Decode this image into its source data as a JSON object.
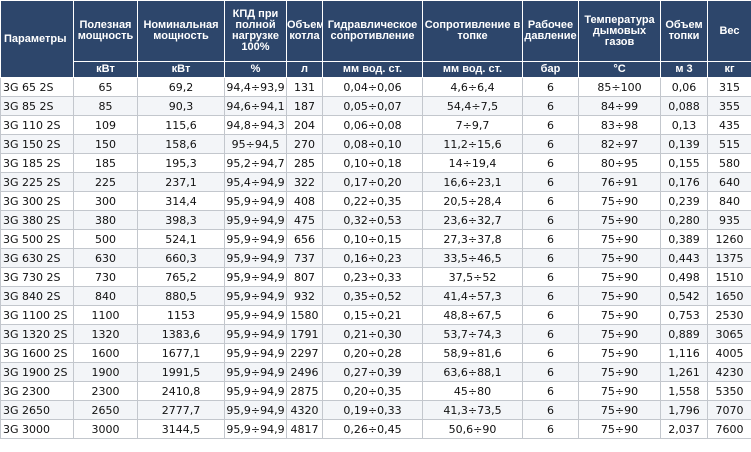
{
  "colors": {
    "header_bg": "#2d466b",
    "header_text": "#ffffff",
    "grid": "#c3c7cd"
  },
  "headers": [
    "Параметры",
    "Полезная мощность",
    "Номинальная мощность",
    "КПД при полной нагрузке 100%",
    "Объем котла",
    "Гидравлическое сопротивление",
    "Сопротивление в топке",
    "Рабочее давление",
    "Температура дымовых газов",
    "Объем топки",
    "Вес"
  ],
  "units": [
    "",
    "кВт",
    "кВт",
    "%",
    "л",
    "мм вод. ст.",
    "мм вод. ст.",
    "бар",
    "°C",
    "м 3",
    "кг"
  ],
  "rows": [
    [
      "3G 65 2S",
      "65",
      "69,2",
      "94,4÷93,9",
      "131",
      "0,04÷0,06",
      "4,6÷6,4",
      "6",
      "85÷100",
      "0,06",
      "315"
    ],
    [
      "3G 85 2S",
      "85",
      "90,3",
      "94,6÷94,1",
      "187",
      "0,05÷0,07",
      "54,4÷7,5",
      "6",
      "84÷99",
      "0,088",
      "355"
    ],
    [
      "3G 110 2S",
      "109",
      "115,6",
      "94,8÷94,3",
      "204",
      "0,06÷0,08",
      "7÷9,7",
      "6",
      "83÷98",
      "0,13",
      "435"
    ],
    [
      "3G 150 2S",
      "150",
      "158,6",
      "95÷94,5",
      "270",
      "0,08÷0,10",
      "11,2÷15,6",
      "6",
      "82÷97",
      "0,139",
      "515"
    ],
    [
      "3G 185 2S",
      "185",
      "195,3",
      "95,2÷94,7",
      "285",
      "0,10÷0,18",
      "14÷19,4",
      "6",
      "80÷95",
      "0,155",
      "580"
    ],
    [
      "3G 225 2S",
      "225",
      "237,1",
      "95,4÷94,9",
      "322",
      "0,17÷0,20",
      "16,6÷23,1",
      "6",
      "76÷91",
      "0,176",
      "640"
    ],
    [
      "3G 300 2S",
      "300",
      "314,4",
      "95,9÷94,9",
      "408",
      "0,22÷0,35",
      "20,5÷28,4",
      "6",
      "75÷90",
      "0,239",
      "840"
    ],
    [
      "3G 380 2S",
      "380",
      "398,3",
      "95,9÷94,9",
      "475",
      "0,32÷0,53",
      "23,6÷32,7",
      "6",
      "75÷90",
      "0,280",
      "935"
    ],
    [
      "3G 500 2S",
      "500",
      "524,1",
      "95,9÷94,9",
      "656",
      "0,10÷0,15",
      "27,3÷37,8",
      "6",
      "75÷90",
      "0,389",
      "1260"
    ],
    [
      "3G 630 2S",
      "630",
      "660,3",
      "95,9÷94,9",
      "737",
      "0,16÷0,23",
      "33,5÷46,5",
      "6",
      "75÷90",
      "0,443",
      "1375"
    ],
    [
      "3G 730 2S",
      "730",
      "765,2",
      "95,9÷94,9",
      "807",
      "0,23÷0,33",
      "37,5÷52",
      "6",
      "75÷90",
      "0,498",
      "1510"
    ],
    [
      "3G 840 2S",
      "840",
      "880,5",
      "95,9÷94,9",
      "932",
      "0,35÷0,52",
      "41,4÷57,3",
      "6",
      "75÷90",
      "0,542",
      "1650"
    ],
    [
      "3G 1100 2S",
      "1100",
      "1153",
      "95,9÷94,9",
      "1580",
      "0,15÷0,21",
      "48,8÷67,5",
      "6",
      "75÷90",
      "0,753",
      "2530"
    ],
    [
      "3G 1320 2S",
      "1320",
      "1383,6",
      "95,9÷94,9",
      "1791",
      "0,21÷0,30",
      "53,7÷74,3",
      "6",
      "75÷90",
      "0,889",
      "3065"
    ],
    [
      "3G 1600 2S",
      "1600",
      "1677,1",
      "95,9÷94,9",
      "2297",
      "0,20÷0,28",
      "58,9÷81,6",
      "6",
      "75÷90",
      "1,116",
      "4005"
    ],
    [
      "3G 1900 2S",
      "1900",
      "1991,5",
      "95,9÷94,9",
      "2496",
      "0,27÷0,39",
      "63,6÷88,1",
      "6",
      "75÷90",
      "1,261",
      "4230"
    ],
    [
      "3G 2300",
      "2300",
      "2410,8",
      "95,9÷94,9",
      "2875",
      "0,20÷0,35",
      "45÷80",
      "6",
      "75÷90",
      "1,558",
      "5350"
    ],
    [
      "3G 2650",
      "2650",
      "2777,7",
      "95,9÷94,9",
      "4320",
      "0,19÷0,33",
      "41,3÷73,5",
      "6",
      "75÷90",
      "1,796",
      "7070"
    ],
    [
      "3G 3000",
      "3000",
      "3144,5",
      "95,9÷94,9",
      "4817",
      "0,26÷0,45",
      "50,6÷90",
      "6",
      "75÷90",
      "2,037",
      "7600"
    ]
  ]
}
